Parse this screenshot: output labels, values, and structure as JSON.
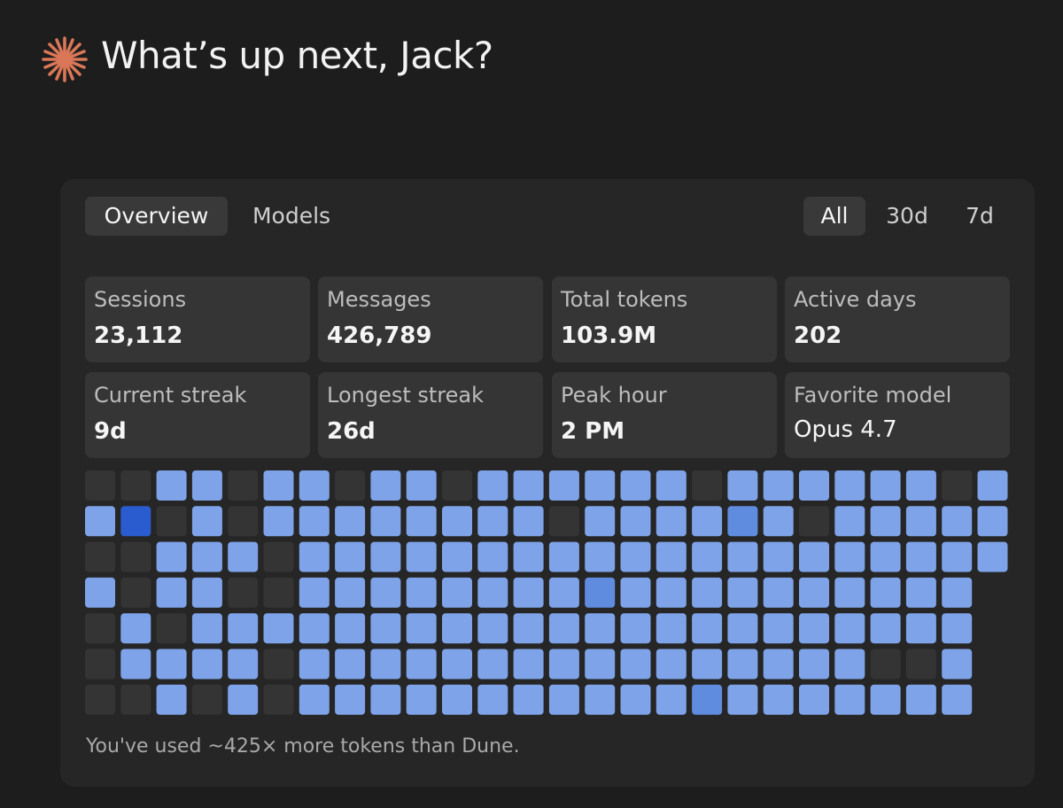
{
  "header": {
    "title": "What’s up next, Jack?"
  },
  "tabs": [
    "Overview",
    "Models"
  ],
  "ranges": [
    "All",
    "30d",
    "7d"
  ],
  "stats": [
    {
      "label": "Sessions",
      "value": "23,112"
    },
    {
      "label": "Messages",
      "value": "426,789"
    },
    {
      "label": "Total tokens",
      "value": "103.9M"
    },
    {
      "label": "Active days",
      "value": "202"
    },
    {
      "label": "Current streak",
      "value": "9d"
    },
    {
      "label": "Longest streak",
      "value": "26d"
    },
    {
      "label": "Peak hour",
      "value": "2 PM"
    },
    {
      "label": "Favorite model",
      "value": "Opus 4.7"
    }
  ],
  "heatmap": {
    "levels": [
      [
        0,
        0,
        1,
        1,
        0,
        1,
        1,
        0,
        1,
        1,
        0,
        1,
        1,
        1,
        1,
        1,
        1,
        0,
        1,
        1,
        1,
        1,
        1,
        1,
        0,
        1
      ],
      [
        1,
        3,
        0,
        1,
        0,
        1,
        1,
        1,
        1,
        1,
        1,
        1,
        1,
        0,
        1,
        1,
        1,
        1,
        2,
        1,
        0,
        1,
        1,
        1,
        1,
        1
      ],
      [
        0,
        0,
        1,
        1,
        1,
        0,
        1,
        1,
        1,
        1,
        1,
        1,
        1,
        1,
        1,
        1,
        1,
        1,
        1,
        1,
        1,
        1,
        1,
        1,
        1,
        1
      ],
      [
        1,
        0,
        1,
        1,
        0,
        0,
        1,
        1,
        1,
        1,
        1,
        1,
        1,
        1,
        2,
        1,
        1,
        1,
        1,
        1,
        1,
        1,
        1,
        1,
        1,
        null
      ],
      [
        0,
        1,
        0,
        1,
        1,
        1,
        1,
        1,
        1,
        1,
        1,
        1,
        1,
        1,
        1,
        1,
        1,
        1,
        1,
        1,
        1,
        1,
        1,
        1,
        1,
        null
      ],
      [
        0,
        1,
        1,
        1,
        1,
        0,
        1,
        1,
        1,
        1,
        1,
        1,
        1,
        1,
        1,
        1,
        1,
        1,
        1,
        1,
        1,
        1,
        0,
        0,
        1,
        null
      ],
      [
        0,
        0,
        1,
        0,
        1,
        0,
        1,
        1,
        1,
        1,
        1,
        1,
        1,
        1,
        1,
        1,
        1,
        2,
        1,
        1,
        1,
        1,
        1,
        1,
        1,
        null
      ]
    ]
  },
  "footer": "You've used ~425× more tokens than Dune."
}
